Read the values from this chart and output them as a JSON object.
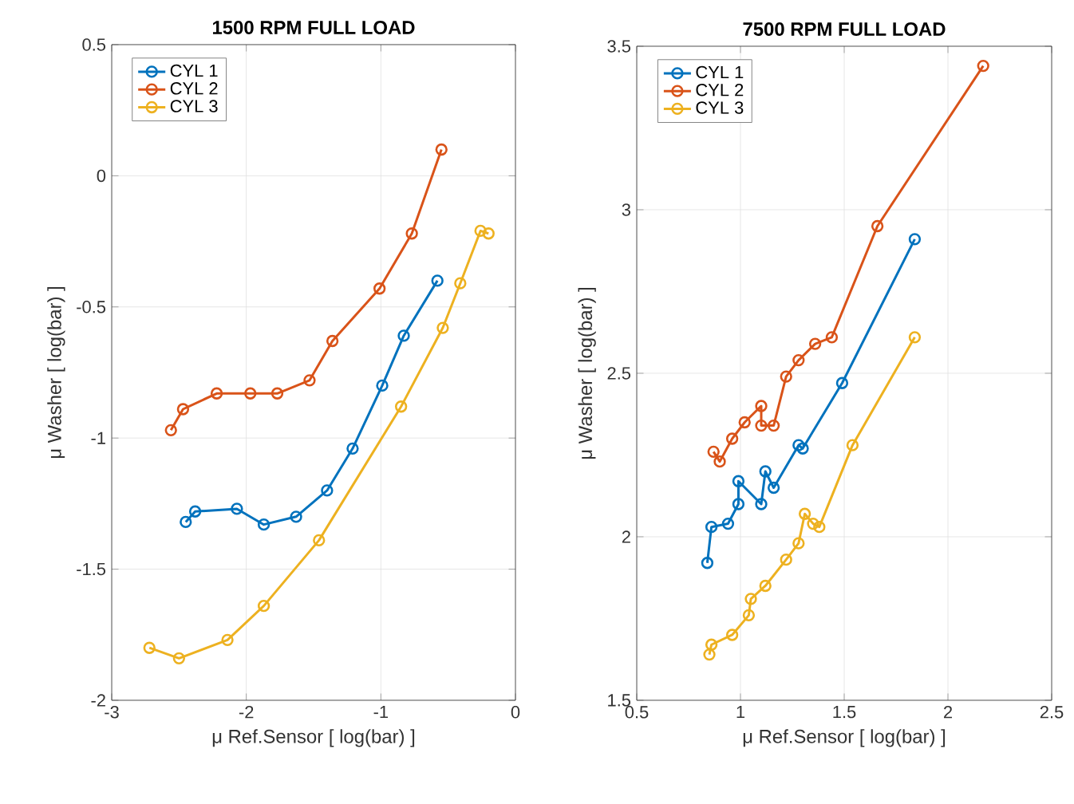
{
  "chart_data": [
    {
      "type": "line",
      "title": "1500 RPM FULL LOAD",
      "xlabel": "μ Ref.Sensor [ log(bar) ]",
      "ylabel": "μ Washer [ log(bar) ]",
      "xlim": [
        -3,
        0
      ],
      "ylim": [
        -2,
        0.5
      ],
      "xticks": [
        -3,
        -2,
        -1,
        0
      ],
      "yticks": [
        -2,
        -1.5,
        -1,
        -0.5,
        0,
        0.5
      ],
      "grid": true,
      "legend": "top left",
      "marker": "circle",
      "series": [
        {
          "name": "CYL 1",
          "color": "#0072bd",
          "x": [
            -2.45,
            -2.38,
            -2.07,
            -1.87,
            -1.63,
            -1.4,
            -1.21,
            -0.99,
            -0.83,
            -0.58
          ],
          "values": [
            -1.32,
            -1.28,
            -1.27,
            -1.33,
            -1.3,
            -1.2,
            -1.04,
            -0.8,
            -0.61,
            -0.4
          ]
        },
        {
          "name": "CYL 2",
          "color": "#d95319",
          "x": [
            -2.56,
            -2.47,
            -2.22,
            -1.97,
            -1.77,
            -1.53,
            -1.36,
            -1.01,
            -0.77,
            -0.55
          ],
          "values": [
            -0.97,
            -0.89,
            -0.83,
            -0.83,
            -0.83,
            -0.78,
            -0.63,
            -0.43,
            -0.22,
            0.1
          ]
        },
        {
          "name": "CYL 3",
          "color": "#edb120",
          "x": [
            -2.72,
            -2.5,
            -2.14,
            -1.87,
            -1.46,
            -0.85,
            -0.54,
            -0.41,
            -0.26,
            -0.2
          ],
          "values": [
            -1.8,
            -1.84,
            -1.77,
            -1.64,
            -1.39,
            -0.88,
            -0.58,
            -0.41,
            -0.21,
            -0.22
          ]
        }
      ]
    },
    {
      "type": "line",
      "title": "7500 RPM FULL LOAD",
      "xlabel": "μ Ref.Sensor [ log(bar) ]",
      "ylabel": "μ Washer [ log(bar) ]",
      "xlim": [
        0.5,
        2.5
      ],
      "ylim": [
        1.5,
        3.5
      ],
      "xticks": [
        0.5,
        1,
        1.5,
        2,
        2.5
      ],
      "yticks": [
        1.5,
        2,
        2.5,
        3,
        3.5
      ],
      "grid": true,
      "legend": "top left",
      "marker": "circle",
      "series": [
        {
          "name": "CYL 1",
          "color": "#0072bd",
          "x": [
            0.84,
            0.86,
            0.94,
            0.99,
            0.99,
            1.1,
            1.12,
            1.16,
            1.28,
            1.3,
            1.49,
            1.84
          ],
          "values": [
            1.92,
            2.03,
            2.04,
            2.1,
            2.17,
            2.1,
            2.2,
            2.15,
            2.28,
            2.27,
            2.47,
            2.91
          ]
        },
        {
          "name": "CYL 2",
          "color": "#d95319",
          "x": [
            0.87,
            0.9,
            0.96,
            1.02,
            1.1,
            1.1,
            1.16,
            1.22,
            1.28,
            1.36,
            1.44,
            1.66,
            2.17
          ],
          "values": [
            2.26,
            2.23,
            2.3,
            2.35,
            2.4,
            2.34,
            2.34,
            2.49,
            2.54,
            2.59,
            2.61,
            2.95,
            3.44
          ]
        },
        {
          "name": "CYL 3",
          "color": "#edb120",
          "x": [
            0.85,
            0.86,
            0.96,
            1.04,
            1.05,
            1.12,
            1.22,
            1.28,
            1.31,
            1.35,
            1.38,
            1.54,
            1.84
          ],
          "values": [
            1.64,
            1.67,
            1.7,
            1.76,
            1.81,
            1.85,
            1.93,
            1.98,
            2.07,
            2.04,
            2.03,
            2.28,
            2.61
          ]
        }
      ]
    }
  ]
}
